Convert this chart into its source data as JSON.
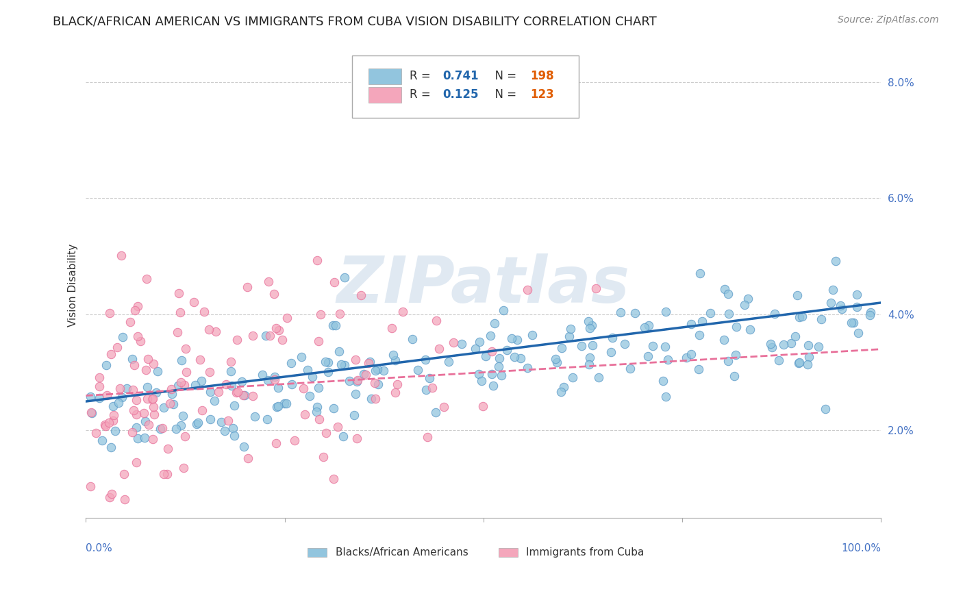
{
  "title": "BLACK/AFRICAN AMERICAN VS IMMIGRANTS FROM CUBA VISION DISABILITY CORRELATION CHART",
  "source": "Source: ZipAtlas.com",
  "ylabel": "Vision Disability",
  "legend_blue_r": "R = 0.741",
  "legend_blue_n": "N = 198",
  "legend_pink_r": "R = 0.125",
  "legend_pink_n": "N = 123",
  "legend_label_blue": "Blacks/African Americans",
  "legend_label_pink": "Immigrants from Cuba",
  "blue_color": "#92c5de",
  "pink_color": "#f4a6bb",
  "blue_edge_color": "#5b9ac8",
  "pink_edge_color": "#e8709a",
  "blue_line_color": "#2166ac",
  "pink_line_color": "#e8709a",
  "watermark": "ZIPatlas",
  "blue_seed": 42,
  "pink_seed": 99,
  "n_blue": 198,
  "n_pink": 123,
  "R_blue": 0.741,
  "R_pink": 0.125,
  "xlim": [
    0,
    1
  ],
  "ylim": [
    0.005,
    0.085
  ],
  "yticks": [
    0.02,
    0.04,
    0.06,
    0.08
  ],
  "ytick_labels": [
    "2.0%",
    "4.0%",
    "6.0%",
    "8.0%"
  ],
  "blue_trend_start": 0.025,
  "blue_trend_end": 0.042,
  "pink_trend_start": 0.026,
  "pink_trend_end": 0.034,
  "title_fontsize": 13,
  "axis_label_fontsize": 11,
  "tick_fontsize": 11,
  "source_fontsize": 10,
  "legend_fontsize": 12,
  "r_n_color": "#2166ac",
  "n_value_color": "#e05c00",
  "background_color": "#ffffff",
  "grid_color": "#cccccc"
}
